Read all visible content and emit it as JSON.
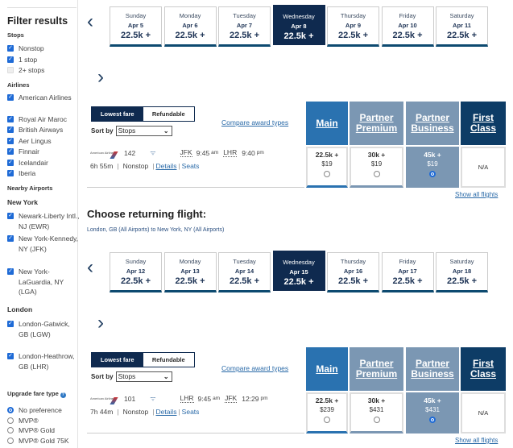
{
  "colors": {
    "navy": "#0f2a4f",
    "main": "#2a72b0",
    "partner": "#7b97b3",
    "first": "#0d3c66",
    "link": "#2a6aa8",
    "checkbox": "#1f6bd6"
  },
  "sidebar": {
    "title": "Filter results",
    "stops_heading": "Stops",
    "stops": [
      {
        "label": "Nonstop",
        "checked": true
      },
      {
        "label": "1 stop",
        "checked": true
      },
      {
        "label": "2+ stops",
        "checked": false
      }
    ],
    "airlines_heading": "Airlines",
    "airlines": [
      {
        "label": "American Airlines",
        "checked": true
      },
      {
        "label": "Royal Air Maroc",
        "checked": true
      },
      {
        "label": "British Airways",
        "checked": true
      },
      {
        "label": "Aer Lingus",
        "checked": true
      },
      {
        "label": "Finnair",
        "checked": true
      },
      {
        "label": "Icelandair",
        "checked": true
      },
      {
        "label": "Iberia",
        "checked": true
      }
    ],
    "nearby_heading": "Nearby Airports",
    "ny_heading": "New York",
    "ny": [
      {
        "label": "Newark-Liberty Intl., NJ (EWR)",
        "checked": true
      },
      {
        "label": "New York-Kennedy, NY (JFK)",
        "checked": true
      },
      {
        "label": "New York-LaGuardia, NY (LGA)",
        "checked": true
      }
    ],
    "london_heading": "London",
    "london": [
      {
        "label": "London-Gatwick, GB (LGW)",
        "checked": true
      },
      {
        "label": "London-Heathrow, GB (LHR)",
        "checked": true
      }
    ],
    "upgrade_heading": "Upgrade fare type",
    "upgrade": [
      {
        "label": "No preference",
        "selected": true
      },
      {
        "label": "MVP®",
        "selected": false
      },
      {
        "label": "MVP® Gold",
        "selected": false
      },
      {
        "label": "MVP® Gold 75K",
        "selected": false
      }
    ]
  },
  "common": {
    "lowest_fare": "Lowest fare",
    "refundable": "Refundable",
    "sort_by": "Sort by",
    "sort_value": "Stops",
    "compare": "Compare award types",
    "show_all": "Show all flights",
    "details": "Details",
    "seats": "Seats",
    "logo": "American Airlines",
    "fare_headers": [
      "Main",
      "Partner Premium",
      "Partner Business",
      "First Class"
    ]
  },
  "return_heading": "Choose returning flight:",
  "return_sub": "London, GB (All Airports) to New York, NY (All Airports)",
  "sections": [
    {
      "dates": [
        {
          "day": "Sunday",
          "date": "Apr 5",
          "price": "22.5k +"
        },
        {
          "day": "Monday",
          "date": "Apr 6",
          "price": "22.5k +"
        },
        {
          "day": "Tuesday",
          "date": "Apr 7",
          "price": "22.5k +"
        },
        {
          "day": "Wednesday",
          "date": "Apr 8",
          "price": "22.5k +",
          "selected": true
        },
        {
          "day": "Thursday",
          "date": "Apr 9",
          "price": "22.5k +"
        },
        {
          "day": "Friday",
          "date": "Apr 10",
          "price": "22.5k +"
        },
        {
          "day": "Saturday",
          "date": "Apr 11",
          "price": "22.5k +"
        }
      ],
      "flight": {
        "number": "142",
        "from": "JFK",
        "dep": "9:45",
        "dep_ampm": "am",
        "to": "LHR",
        "arr": "9:40",
        "arr_ampm": "pm",
        "duration": "6h 55m",
        "stops": "Nonstop"
      },
      "fares": [
        {
          "points": "22.5k +",
          "usd": "$19"
        },
        {
          "points": "30k +",
          "usd": "$19"
        },
        {
          "points": "45k +",
          "usd": "$19",
          "selected": true
        },
        {
          "na": "N/A"
        }
      ]
    },
    {
      "dates": [
        {
          "day": "Sunday",
          "date": "Apr 12",
          "price": "22.5k +"
        },
        {
          "day": "Monday",
          "date": "Apr 13",
          "price": "22.5k +"
        },
        {
          "day": "Tuesday",
          "date": "Apr 14",
          "price": "22.5k +"
        },
        {
          "day": "Wednesday",
          "date": "Apr 15",
          "price": "22.5k +",
          "selected": true
        },
        {
          "day": "Thursday",
          "date": "Apr 16",
          "price": "22.5k +"
        },
        {
          "day": "Friday",
          "date": "Apr 17",
          "price": "22.5k +"
        },
        {
          "day": "Saturday",
          "date": "Apr 18",
          "price": "22.5k +"
        }
      ],
      "flight": {
        "number": "101",
        "from": "LHR",
        "dep": "9:45",
        "dep_ampm": "am",
        "to": "JFK",
        "arr": "12:29",
        "arr_ampm": "pm",
        "duration": "7h 44m",
        "stops": "Nonstop"
      },
      "fares": [
        {
          "points": "22.5k +",
          "usd": "$239"
        },
        {
          "points": "30k +",
          "usd": "$431"
        },
        {
          "points": "45k +",
          "usd": "$431",
          "selected": true
        },
        {
          "na": "N/A"
        }
      ]
    }
  ]
}
